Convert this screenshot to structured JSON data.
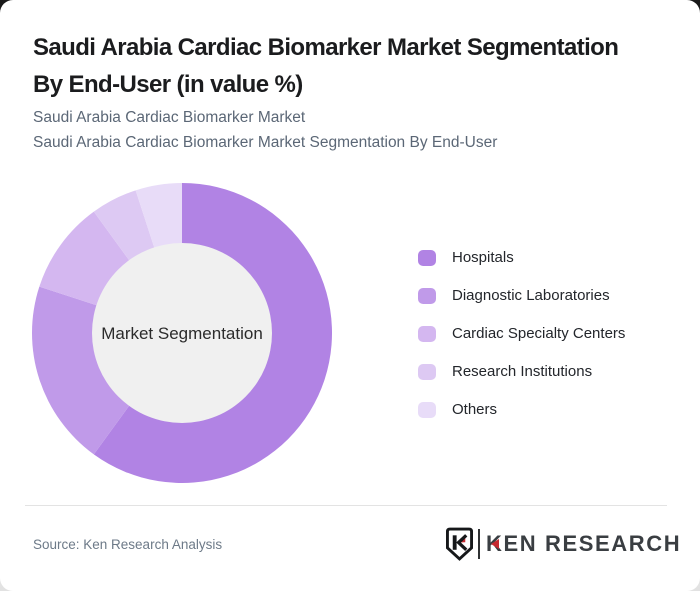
{
  "page": {
    "theme": {
      "card_bg": "#ffffff",
      "top_corner_bg": "#191919",
      "divider": "#e3e3e3",
      "title_color": "#1b1c1e",
      "subtitle_color": "#5b6776"
    }
  },
  "header": {
    "title_lines": [
      "Saudi Arabia Cardiac Biomarker Market Segmentation",
      "By End-User (in value %)"
    ],
    "subtitle_lines": [
      "Saudi Arabia Cardiac Biomarker Market",
      "Saudi Arabia Cardiac Biomarker Market Segmentation By End-User"
    ]
  },
  "chart_data": {
    "type": "pie",
    "variant": "donut",
    "title": "Saudi Arabia Cardiac Biomarker Market Segmentation By End-User (in value %)",
    "center_label": "Market Segmentation",
    "categories": [
      "Hospitals",
      "Diagnostic Laboratories",
      "Cardiac Specialty Centers",
      "Research Institutions",
      "Others"
    ],
    "values": [
      60,
      20,
      10,
      5,
      5
    ],
    "colors": [
      "#b183e4",
      "#c09ae9",
      "#d4b7f0",
      "#ddc9f3",
      "#e8dcf8"
    ],
    "hole_color": "#f0f0f0",
    "hole_ratio": 0.6,
    "start_angle_deg": 0,
    "direction": "clockwise",
    "legend_position": "right",
    "data_labels_shown": false
  },
  "footer": {
    "source": "Source: Ken Research Analysis",
    "logo": {
      "brand": "KEN RESEARCH",
      "monogram": "K",
      "red": "#c5282f",
      "dark": "#3a3e42"
    }
  }
}
